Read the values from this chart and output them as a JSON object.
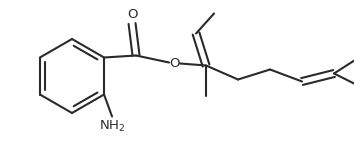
{
  "line_color": "#2a2a2a",
  "bg_color": "#ffffff",
  "linewidth": 1.5,
  "fontsize_label": 9.5,
  "figsize": [
    3.54,
    1.56
  ],
  "dpi": 100,
  "xlim": [
    0,
    354
  ],
  "ylim": [
    0,
    156
  ]
}
